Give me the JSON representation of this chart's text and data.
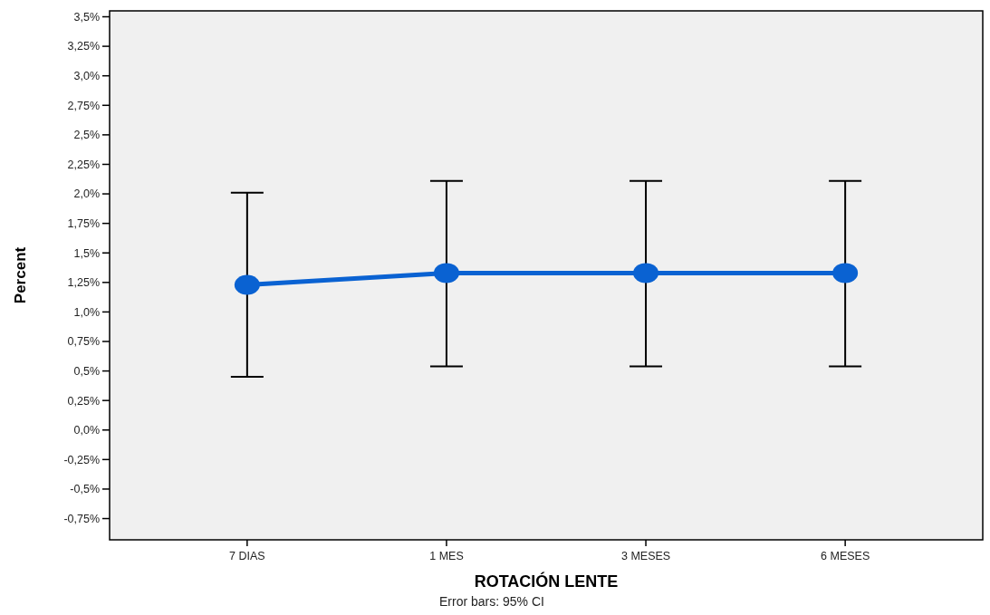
{
  "chart_data": {
    "type": "line",
    "xlabel": "ROTACIÓN LENTE",
    "ylabel": "Percent",
    "annotations": [
      "Error bars: 95% CI"
    ],
    "categories": [
      "7 DIAS",
      "1 MES",
      "3 MESES",
      "6 MESES"
    ],
    "values": [
      1.23,
      1.33,
      1.33,
      1.33
    ],
    "color": "#0a62d2",
    "errors": [
      [
        0.45,
        2.01
      ],
      [
        0.54,
        2.11
      ],
      [
        0.54,
        2.11
      ],
      [
        0.54,
        2.11
      ]
    ],
    "ylim": [
      -0.93,
      3.55
    ],
    "yticks": [
      {
        "value": 3.5,
        "label": "3,5%"
      },
      {
        "value": 3.25,
        "label": "3,25%"
      },
      {
        "value": 3.0,
        "label": "3,0%"
      },
      {
        "value": 2.75,
        "label": "2,75%"
      },
      {
        "value": 2.5,
        "label": "2,5%"
      },
      {
        "value": 2.25,
        "label": "2,25%"
      },
      {
        "value": 2.0,
        "label": "2,0%"
      },
      {
        "value": 1.75,
        "label": "1,75%"
      },
      {
        "value": 1.5,
        "label": "1,5%"
      },
      {
        "value": 1.25,
        "label": "1,25%"
      },
      {
        "value": 1.0,
        "label": "1,0%"
      },
      {
        "value": 0.75,
        "label": "0,75%"
      },
      {
        "value": 0.5,
        "label": "0,5%"
      },
      {
        "value": 0.25,
        "label": "0,25%"
      },
      {
        "value": 0.0,
        "label": "0,0%"
      },
      {
        "value": -0.25,
        "label": "-0,25%"
      },
      {
        "value": -0.5,
        "label": "-0,5%"
      },
      {
        "value": -0.75,
        "label": "-0,75%"
      }
    ],
    "marker": "circle",
    "line_style": "solid"
  }
}
